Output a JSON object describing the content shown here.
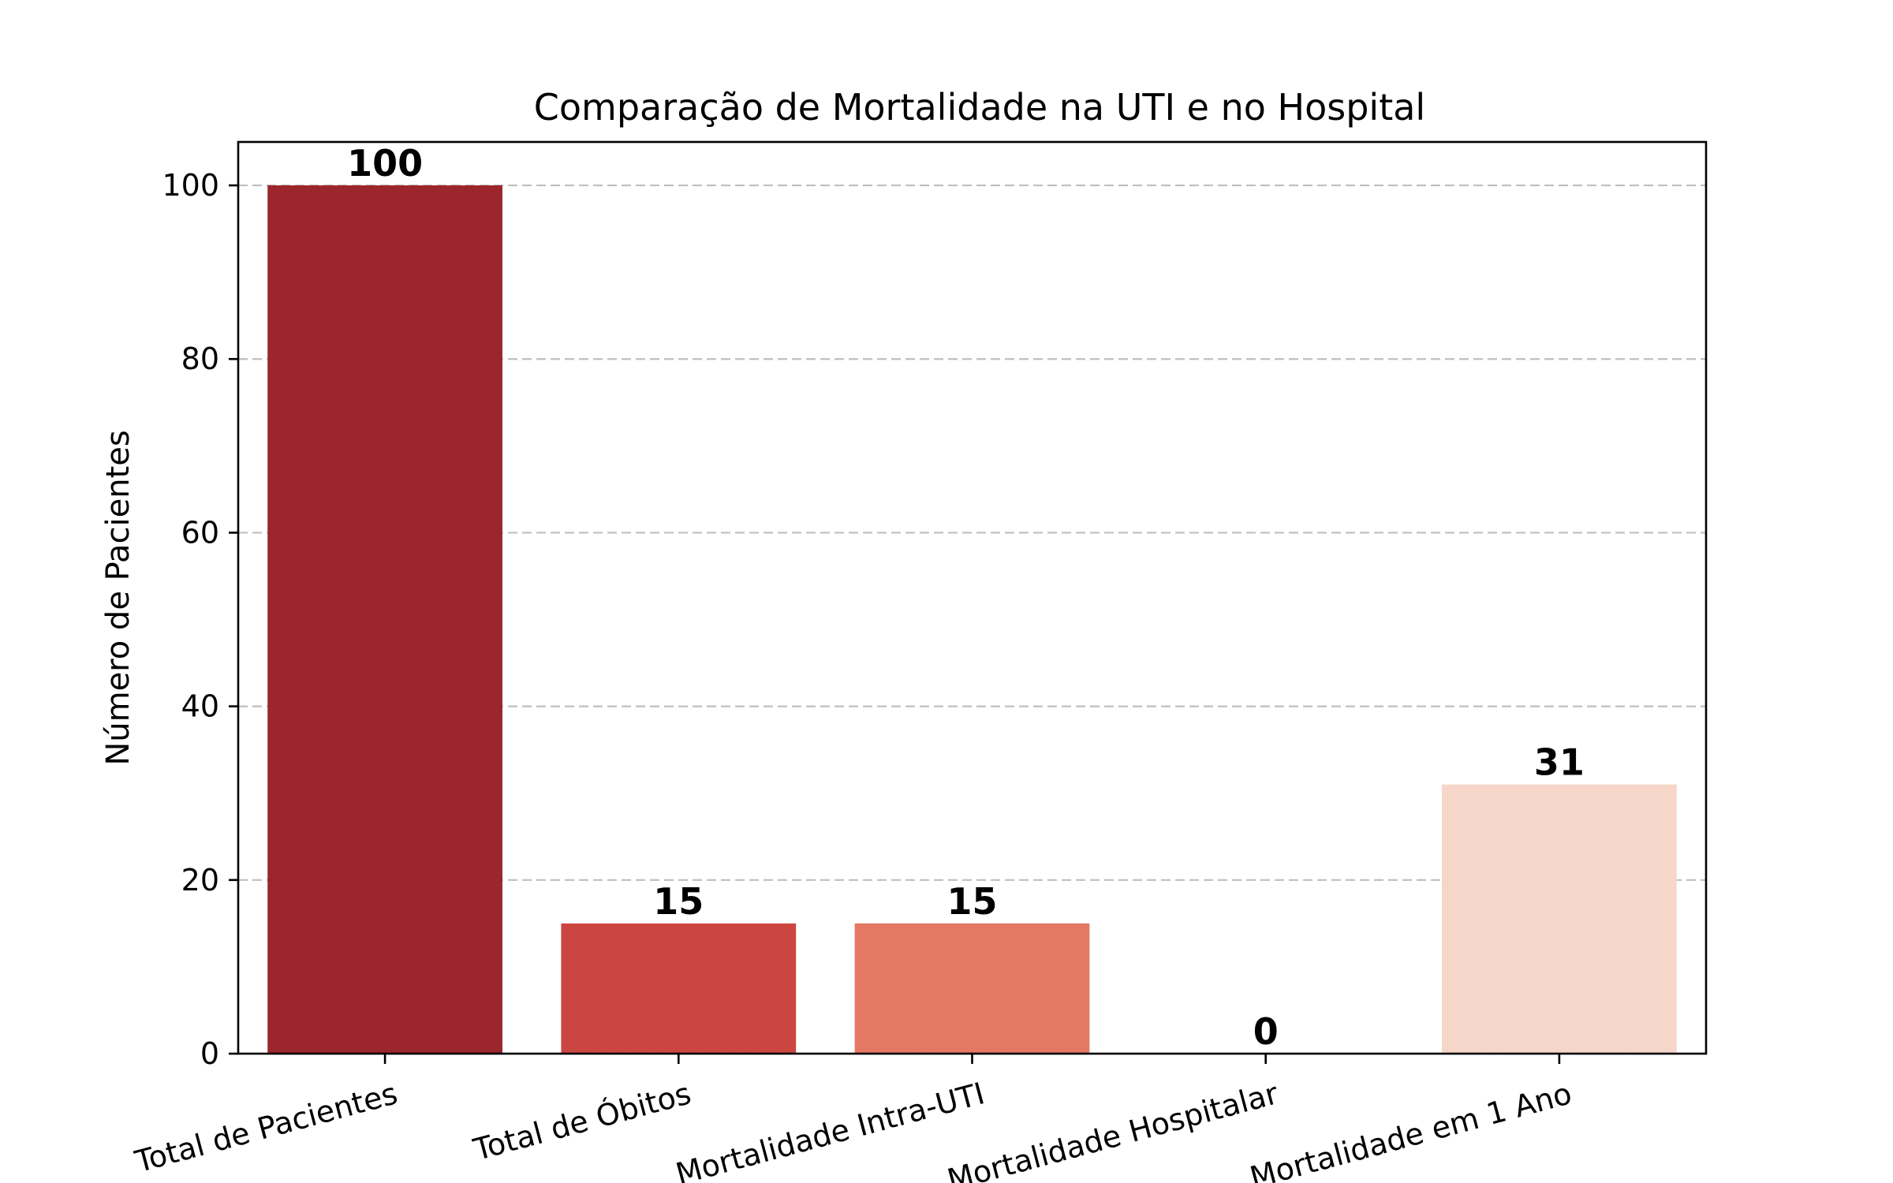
{
  "chart_data": {
    "type": "bar",
    "title": "Comparação de Mortalidade na UTI e no Hospital",
    "xlabel": "",
    "ylabel": "Número de Pacientes",
    "categories": [
      "Total de Pacientes",
      "Total de Óbitos",
      "Mortalidade Intra-UTI",
      "Mortalidade Hospitalar",
      "Mortalidade em 1 Ano"
    ],
    "values": [
      100,
      15,
      15,
      0,
      31
    ],
    "bar_labels": [
      "100",
      "15",
      "15",
      "0",
      "31"
    ],
    "colors": [
      "#9b262b",
      "#cb4641",
      "#e47862",
      "#f6b49a",
      "#f6d6c8"
    ],
    "ylim": [
      0,
      105
    ],
    "yticks": [
      0,
      20,
      40,
      60,
      80,
      100
    ],
    "grid": "y-dashed",
    "legend": "none"
  }
}
